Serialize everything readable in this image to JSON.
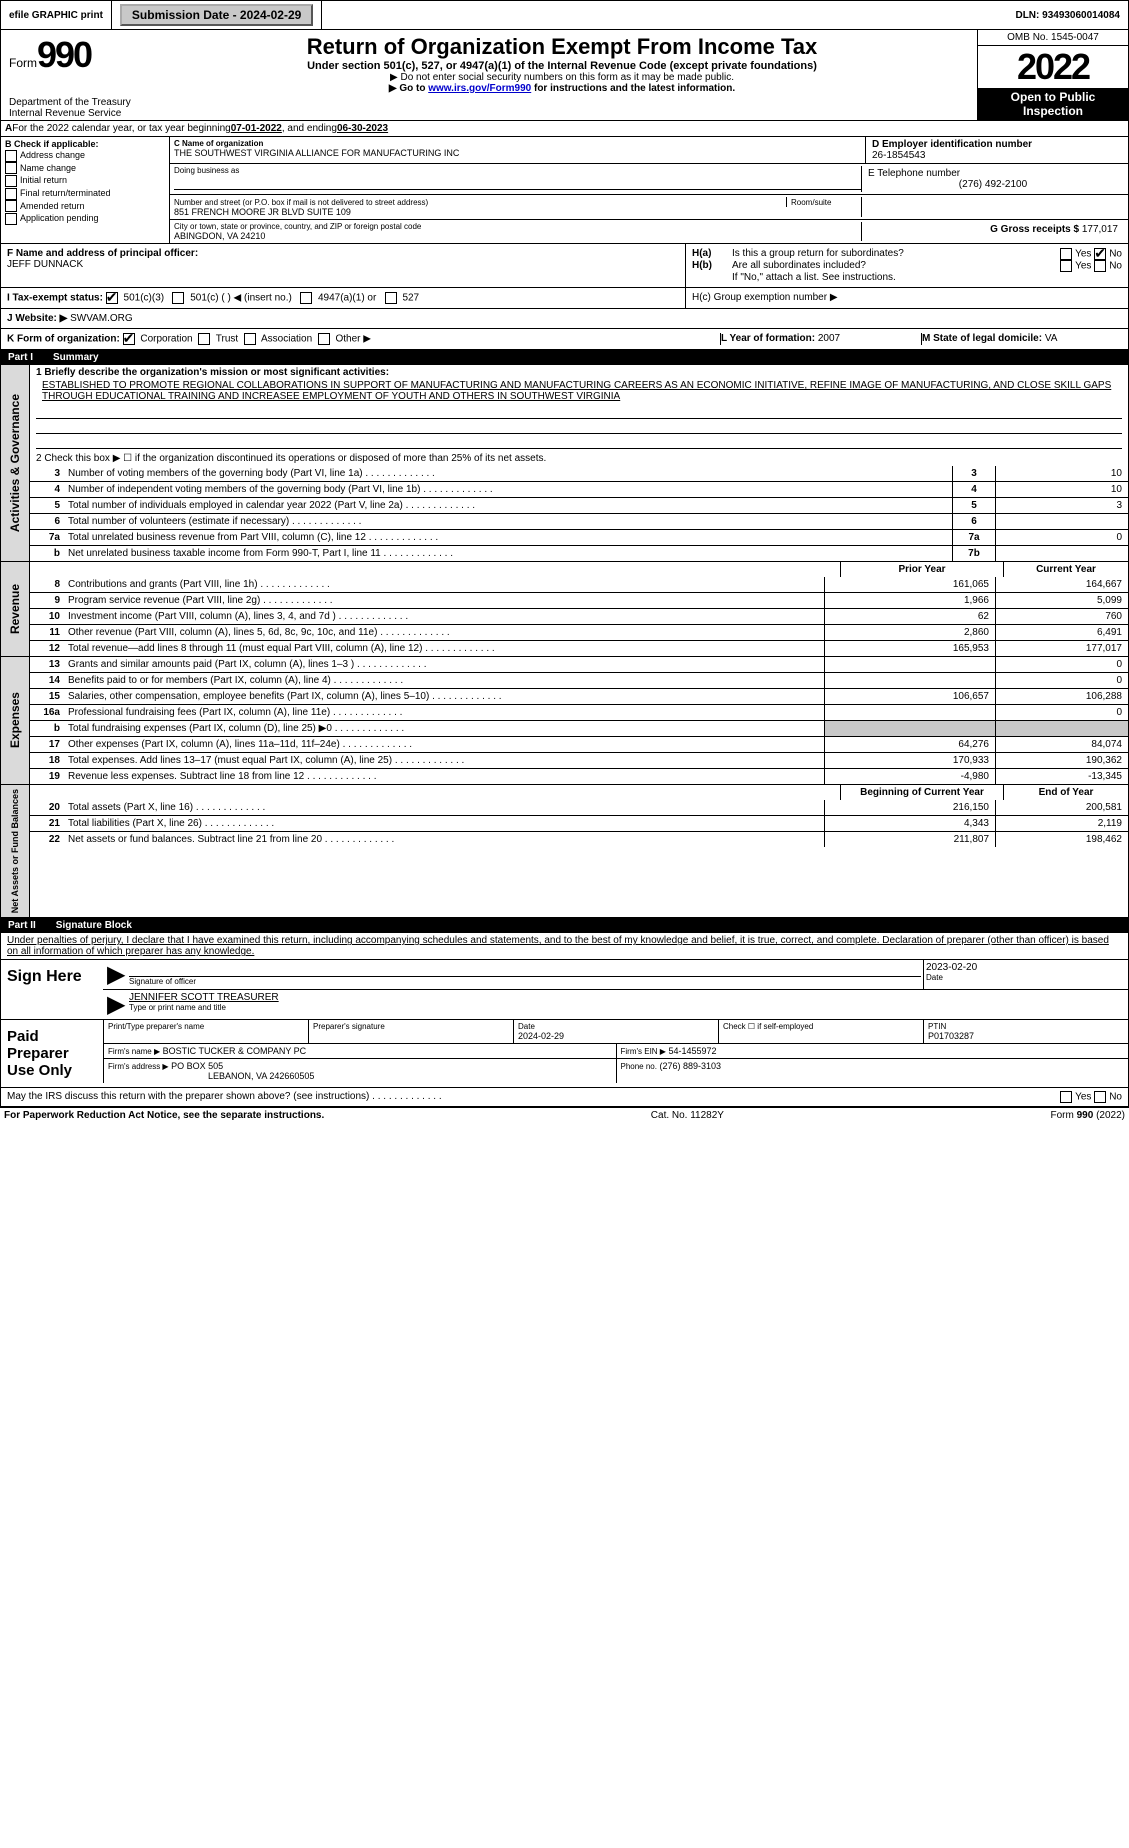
{
  "topbar": {
    "efile": "efile GRAPHIC print",
    "submission_label": "Submission Date - 2024-02-29",
    "dln_label": "DLN: 93493060014084"
  },
  "header": {
    "form_word": "Form",
    "form_num": "990",
    "title": "Return of Organization Exempt From Income Tax",
    "subtitle": "Under section 501(c), 527, or 4947(a)(1) of the Internal Revenue Code (except private foundations)",
    "no_ssn": "▶ Do not enter social security numbers on this form as it may be made public.",
    "goto_pre": "▶ Go to ",
    "goto_link": "www.irs.gov/Form990",
    "goto_post": " for instructions and the latest information.",
    "omb": "OMB No. 1545-0047",
    "year": "2022",
    "open": "Open to Public Inspection",
    "dept": "Department of the Treasury Internal Revenue Service"
  },
  "A": {
    "text_pre": "For the 2022 calendar year, or tax year beginning ",
    "begin": "07-01-2022",
    "mid": " , and ending ",
    "end": "06-30-2023"
  },
  "B": {
    "label": "B Check if applicable:",
    "opts": [
      "Address change",
      "Name change",
      "Initial return",
      "Final return/terminated",
      "Amended return",
      "Application pending"
    ]
  },
  "C": {
    "label": "C Name of organization",
    "name": "THE SOUTHWEST VIRGINIA ALLIANCE FOR MANUFACTURING INC",
    "dba_label": "Doing business as",
    "street_label": "Number and street (or P.O. box if mail is not delivered to street address)",
    "room_label": "Room/suite",
    "street": "851 FRENCH MOORE JR BLVD SUITE 109",
    "city_label": "City or town, state or province, country, and ZIP or foreign postal code",
    "city": "ABINGDON, VA  24210"
  },
  "D": {
    "label": "D Employer identification number",
    "value": "26-1854543"
  },
  "E": {
    "label": "E Telephone number",
    "value": "(276) 492-2100"
  },
  "G": {
    "label": "G Gross receipts $",
    "value": "177,017"
  },
  "F": {
    "label": "F  Name and address of principal officer:",
    "value": "JEFF DUNNACK"
  },
  "H": {
    "a": "H(a)  Is this a group return for subordinates?",
    "b": "H(b)  Are all subordinates included?",
    "b_note": "If \"No,\" attach a list. See instructions.",
    "c": "H(c)  Group exemption number ▶",
    "yes": "Yes",
    "no": "No"
  },
  "I": {
    "label": "I   Tax-exempt status:",
    "c3": "501(c)(3)",
    "c": "501(c) (  ) ◀ (insert no.)",
    "a1": "4947(a)(1) or",
    "527": "527"
  },
  "J": {
    "label": "J   Website: ▶",
    "value": "SWVAM.ORG"
  },
  "K": {
    "label": "K Form of organization:",
    "corp": "Corporation",
    "trust": "Trust",
    "assoc": "Association",
    "other": "Other ▶"
  },
  "L": {
    "label": "L Year of formation:",
    "value": "2007"
  },
  "M": {
    "label": "M State of legal domicile:",
    "value": "VA"
  },
  "parts": {
    "p1": "Part I",
    "p1t": "Summary",
    "p2": "Part II",
    "p2t": "Signature Block"
  },
  "summary": {
    "l1_label": "1  Briefly describe the organization's mission or most significant activities:",
    "mission": "ESTABLISHED TO PROMOTE REGIONAL COLLABORATIONS IN SUPPORT OF MANUFACTURING AND MANUFACTURING CAREERS AS AN ECONOMIC INITIATIVE, REFINE IMAGE OF MANUFACTURING, AND CLOSE SKILL GAPS THROUGH EDUCATIONAL TRAINING AND INCREASEE EMPLOYMENT OF YOUTH AND OTHERS IN SOUTHWEST VIRGINIA",
    "l2": "2   Check this box ▶ ☐ if the organization discontinued its operations or disposed of more than 25% of its net assets.",
    "lines_gov": [
      {
        "n": "3",
        "t": "Number of voting members of the governing body (Part VI, line 1a)",
        "nc": "3",
        "v": "10"
      },
      {
        "n": "4",
        "t": "Number of independent voting members of the governing body (Part VI, line 1b)",
        "nc": "4",
        "v": "10"
      },
      {
        "n": "5",
        "t": "Total number of individuals employed in calendar year 2022 (Part V, line 2a)",
        "nc": "5",
        "v": "3"
      },
      {
        "n": "6",
        "t": "Total number of volunteers (estimate if necessary)",
        "nc": "6",
        "v": ""
      },
      {
        "n": "7a",
        "t": "Total unrelated business revenue from Part VIII, column (C), line 12",
        "nc": "7a",
        "v": "0"
      },
      {
        "n": "b",
        "t": "Net unrelated business taxable income from Form 990-T, Part I, line 11",
        "nc": "7b",
        "v": ""
      }
    ],
    "prior": "Prior Year",
    "current": "Current Year",
    "rev": [
      {
        "n": "8",
        "t": "Contributions and grants (Part VIII, line 1h)",
        "p": "161,065",
        "c": "164,667"
      },
      {
        "n": "9",
        "t": "Program service revenue (Part VIII, line 2g)",
        "p": "1,966",
        "c": "5,099"
      },
      {
        "n": "10",
        "t": "Investment income (Part VIII, column (A), lines 3, 4, and 7d )",
        "p": "62",
        "c": "760"
      },
      {
        "n": "11",
        "t": "Other revenue (Part VIII, column (A), lines 5, 6d, 8c, 9c, 10c, and 11e)",
        "p": "2,860",
        "c": "6,491"
      },
      {
        "n": "12",
        "t": "Total revenue—add lines 8 through 11 (must equal Part VIII, column (A), line 12)",
        "p": "165,953",
        "c": "177,017"
      }
    ],
    "exp": [
      {
        "n": "13",
        "t": "Grants and similar amounts paid (Part IX, column (A), lines 1–3 )",
        "p": "",
        "c": "0"
      },
      {
        "n": "14",
        "t": "Benefits paid to or for members (Part IX, column (A), line 4)",
        "p": "",
        "c": "0"
      },
      {
        "n": "15",
        "t": "Salaries, other compensation, employee benefits (Part IX, column (A), lines 5–10)",
        "p": "106,657",
        "c": "106,288"
      },
      {
        "n": "16a",
        "t": "Professional fundraising fees (Part IX, column (A), line 11e)",
        "p": "",
        "c": "0"
      },
      {
        "n": "b",
        "t": "Total fundraising expenses (Part IX, column (D), line 25) ▶0",
        "p": "SHADE",
        "c": "SHADE"
      },
      {
        "n": "17",
        "t": "Other expenses (Part IX, column (A), lines 11a–11d, 11f–24e)",
        "p": "64,276",
        "c": "84,074"
      },
      {
        "n": "18",
        "t": "Total expenses. Add lines 13–17 (must equal Part IX, column (A), line 25)",
        "p": "170,933",
        "c": "190,362"
      },
      {
        "n": "19",
        "t": "Revenue less expenses. Subtract line 18 from line 12",
        "p": "-4,980",
        "c": "-13,345"
      }
    ],
    "boy": "Beginning of Current Year",
    "eoy": "End of Year",
    "net": [
      {
        "n": "20",
        "t": "Total assets (Part X, line 16)",
        "p": "216,150",
        "c": "200,581"
      },
      {
        "n": "21",
        "t": "Total liabilities (Part X, line 26)",
        "p": "4,343",
        "c": "2,119"
      },
      {
        "n": "22",
        "t": "Net assets or fund balances. Subtract line 21 from line 20",
        "p": "211,807",
        "c": "198,462"
      }
    ],
    "side_gov": "Activities & Governance",
    "side_rev": "Revenue",
    "side_exp": "Expenses",
    "side_net": "Net Assets or Fund Balances"
  },
  "sig": {
    "jurat": "Under penalties of perjury, I declare that I have examined this return, including accompanying schedules and statements, and to the best of my knowledge and belief, it is true, correct, and complete. Declaration of preparer (other than officer) is based on all information of which preparer has any knowledge.",
    "sign_here": "Sign Here",
    "sig_officer": "Signature of officer",
    "date": "Date",
    "date_val": "2023-02-20",
    "name_val": "JENNIFER SCOTT TREASURER",
    "name_label": "Type or print name and title",
    "paid": "Paid Preparer Use Only",
    "pt_name_label": "Print/Type preparer's name",
    "pt_sig_label": "Preparer's signature",
    "pt_date": "2024-02-29",
    "check_self": "Check ☐ if self-employed",
    "ptin_label": "PTIN",
    "ptin": "P01703287",
    "firm_name_label": "Firm's name    ▶",
    "firm_name": "BOSTIC TUCKER & COMPANY PC",
    "firm_ein_label": "Firm's EIN ▶",
    "firm_ein": "54-1455972",
    "firm_addr_label": "Firm's address ▶",
    "firm_addr": "PO BOX 505",
    "firm_addr2": "LEBANON, VA  242660505",
    "phone_label": "Phone no.",
    "phone": "(276) 889-3103",
    "discuss": "May the IRS discuss this return with the preparer shown above? (see instructions)"
  },
  "footer": {
    "pra": "For Paperwork Reduction Act Notice, see the separate instructions.",
    "cat": "Cat. No. 11282Y",
    "form": "Form 990 (2022)"
  }
}
